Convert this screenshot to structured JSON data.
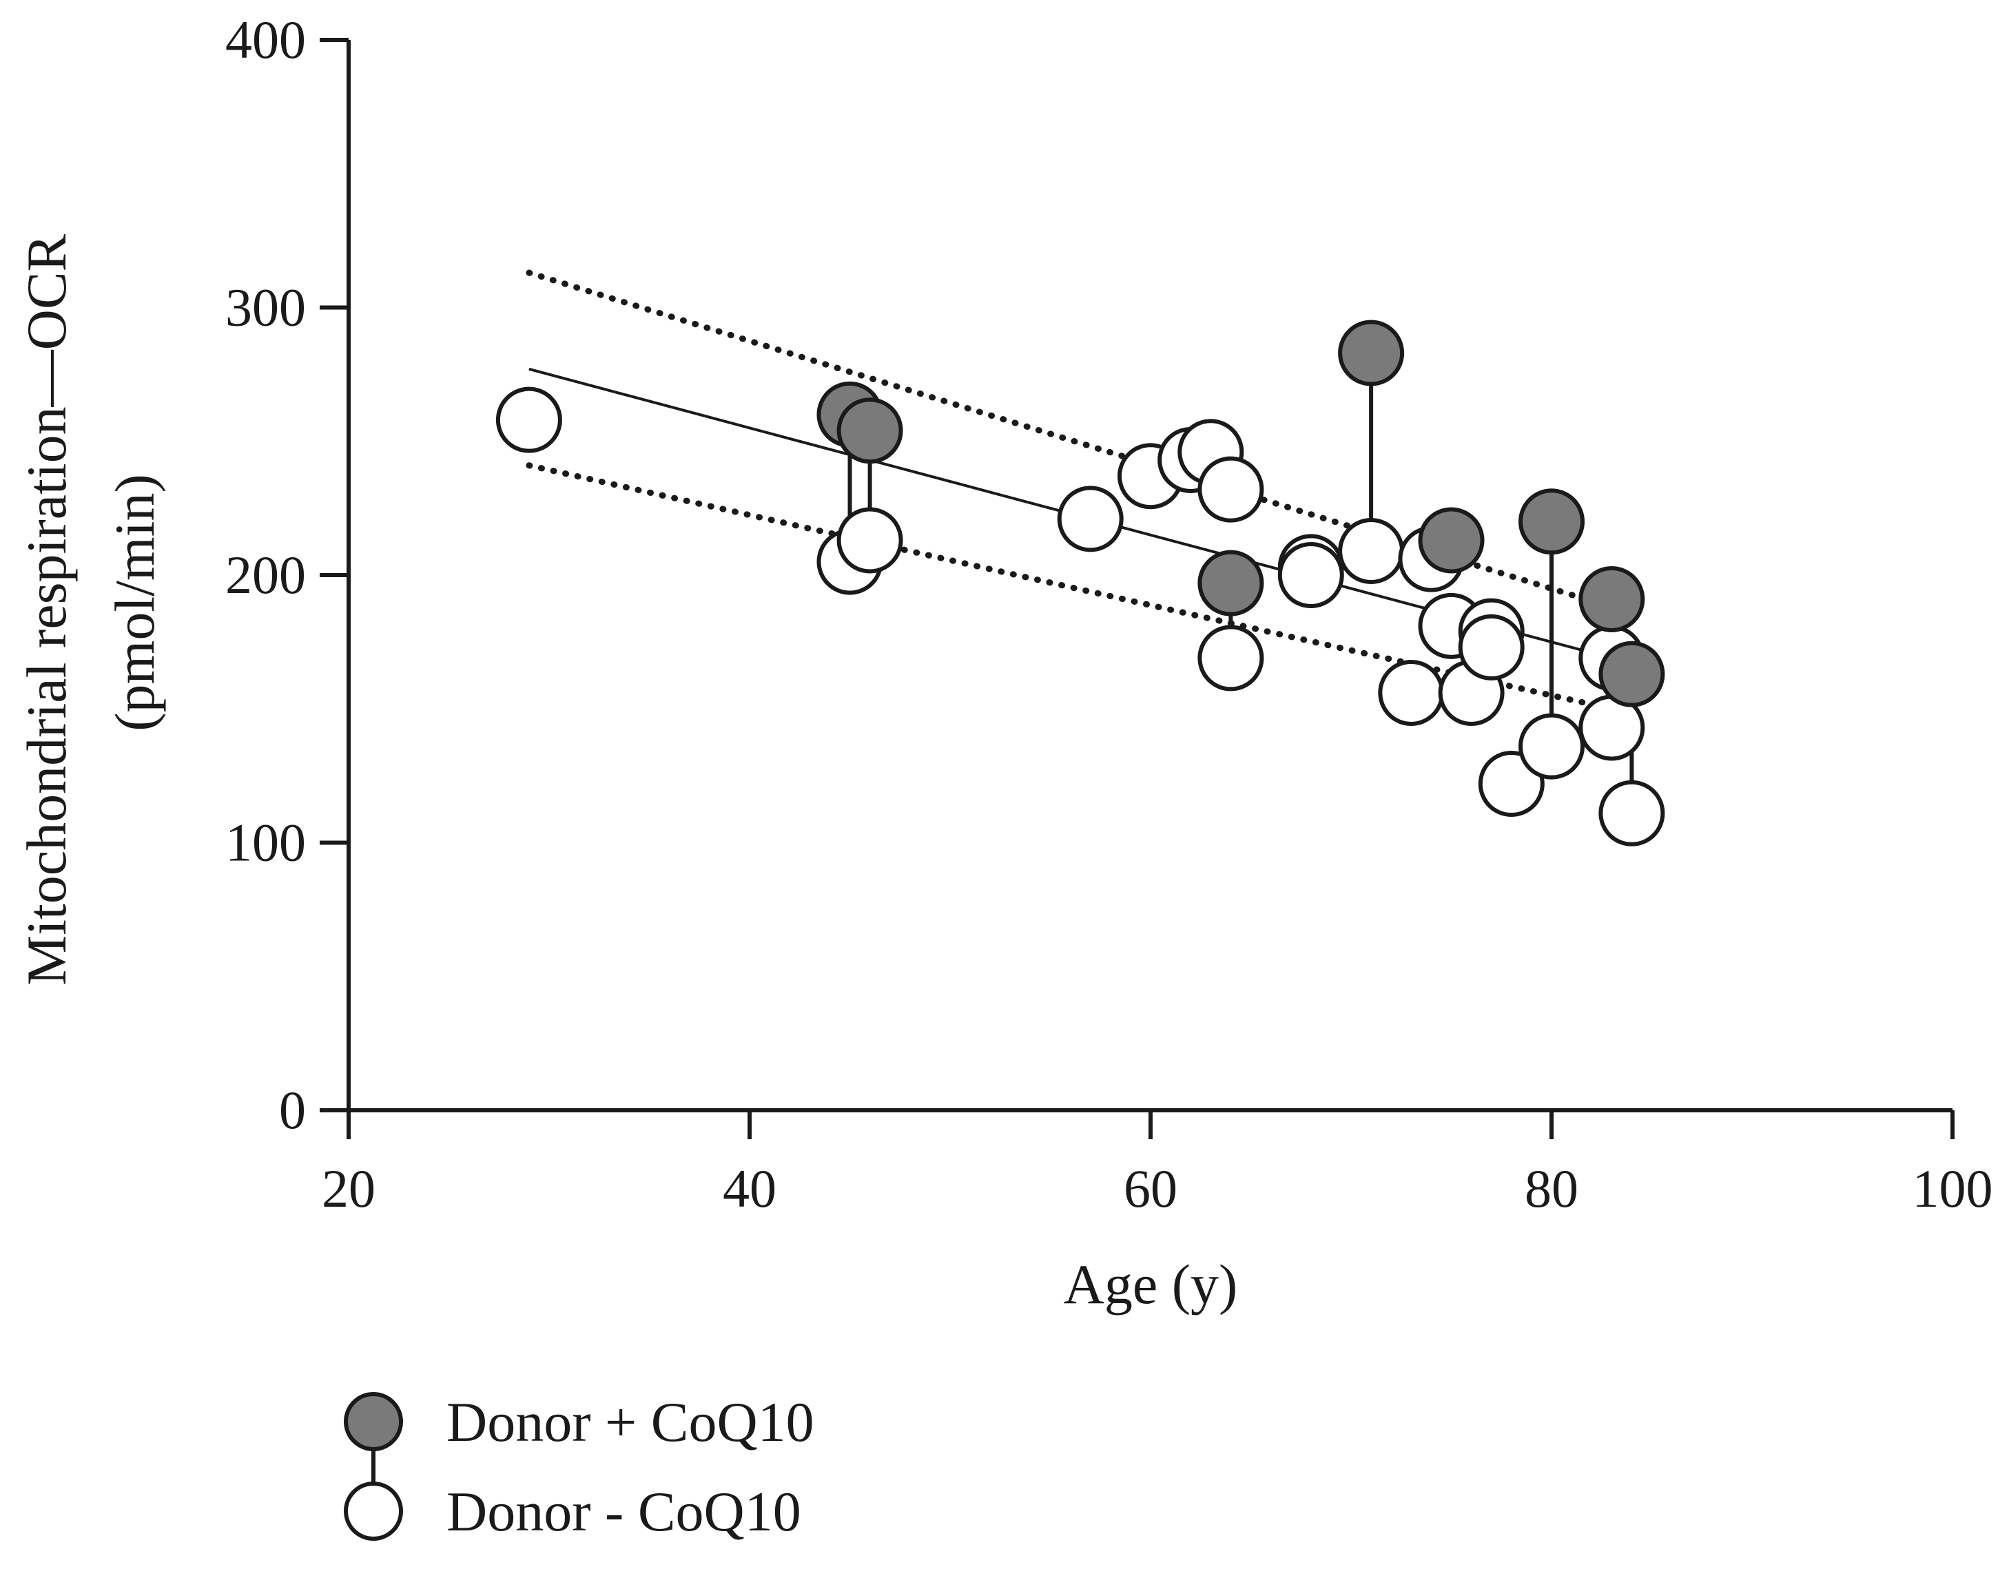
{
  "chart_data": {
    "type": "scatter",
    "title": "",
    "xlabel": "Age (y)",
    "ylabel_line1": "Mitochondrial respiration—OCR",
    "ylabel_line2": "(pmol/min)",
    "xlim": [
      20,
      100
    ],
    "ylim": [
      0,
      400
    ],
    "x_ticks": [
      20,
      40,
      60,
      80,
      100
    ],
    "y_ticks": [
      0,
      100,
      200,
      300,
      400
    ],
    "x_tick_labels": [
      "20",
      "40",
      "60",
      "80",
      "100"
    ],
    "y_tick_labels": [
      "0",
      "100",
      "200",
      "300",
      "400"
    ],
    "grid": false,
    "legend_position": "bottom-left",
    "series": [
      {
        "name": "Donor - CoQ10",
        "marker": "open-circle",
        "color": "#ffffff",
        "points": [
          {
            "x": 29,
            "y": 258
          },
          {
            "x": 45,
            "y": 205
          },
          {
            "x": 46,
            "y": 213
          },
          {
            "x": 57,
            "y": 221
          },
          {
            "x": 60,
            "y": 237
          },
          {
            "x": 62,
            "y": 243
          },
          {
            "x": 63,
            "y": 246
          },
          {
            "x": 64,
            "y": 232
          },
          {
            "x": 64,
            "y": 169
          },
          {
            "x": 68,
            "y": 203
          },
          {
            "x": 68,
            "y": 200
          },
          {
            "x": 71,
            "y": 209
          },
          {
            "x": 73,
            "y": 156
          },
          {
            "x": 74,
            "y": 206
          },
          {
            "x": 75,
            "y": 181
          },
          {
            "x": 76,
            "y": 156
          },
          {
            "x": 77,
            "y": 179
          },
          {
            "x": 77,
            "y": 173
          },
          {
            "x": 78,
            "y": 122
          },
          {
            "x": 80,
            "y": 136
          },
          {
            "x": 83,
            "y": 169
          },
          {
            "x": 83,
            "y": 143
          },
          {
            "x": 84,
            "y": 111
          }
        ]
      },
      {
        "name": "Donor + CoQ10",
        "marker": "filled-circle",
        "color": "#7a7a7a",
        "points": [
          {
            "x": 45,
            "y": 260
          },
          {
            "x": 46,
            "y": 254
          },
          {
            "x": 64,
            "y": 197
          },
          {
            "x": 71,
            "y": 283
          },
          {
            "x": 75,
            "y": 213
          },
          {
            "x": 80,
            "y": 220
          },
          {
            "x": 83,
            "y": 191
          },
          {
            "x": 84,
            "y": 163
          }
        ]
      }
    ],
    "paired_links": [
      {
        "x": 45,
        "y_without": 205,
        "y_with": 260
      },
      {
        "x": 46,
        "y_without": 213,
        "y_with": 254
      },
      {
        "x": 64,
        "y_without": 169,
        "y_with": 197
      },
      {
        "x": 71,
        "y_without": 209,
        "y_with": 283
      },
      {
        "x": 80,
        "y_without": 136,
        "y_with": 220
      },
      {
        "x": 84,
        "y_without": 111,
        "y_with": 163
      }
    ],
    "regression": {
      "fit": {
        "x": [
          29,
          84
        ],
        "y": [
          277,
          167
        ]
      },
      "ci_upper": {
        "x": [
          29,
          83
        ],
        "y": [
          313,
          188
        ]
      },
      "ci_lower": {
        "x": [
          29,
          83
        ],
        "y": [
          241,
          150
        ]
      }
    }
  }
}
